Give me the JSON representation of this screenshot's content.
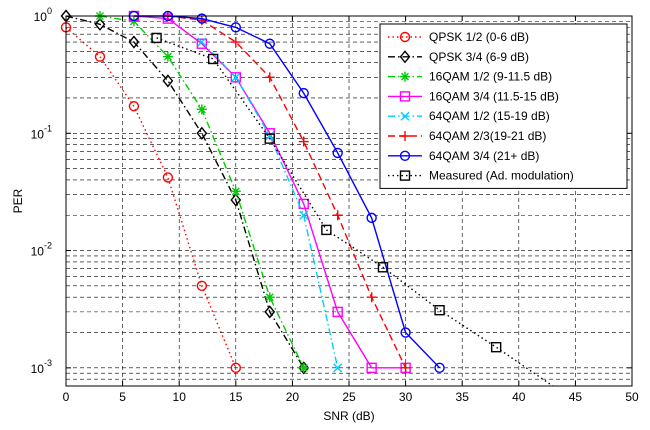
{
  "chart_data": {
    "type": "line",
    "xlabel": "SNR (dB)",
    "ylabel": "PER",
    "xlim": [
      0,
      50
    ],
    "ylim": [
      0.0007,
      1
    ],
    "yscale": "log",
    "grid": true,
    "legend_position": "top-right",
    "x_ticks": [
      "0",
      "5",
      "10",
      "15",
      "20",
      "25",
      "30",
      "35",
      "40",
      "45",
      "50"
    ],
    "y_ticks": [
      {
        "base": "10",
        "exp": "0"
      },
      {
        "base": "10",
        "exp": "-1"
      },
      {
        "base": "10",
        "exp": "-2"
      },
      {
        "base": "10",
        "exp": "-3"
      }
    ],
    "series": [
      {
        "name": "QPSK 1/2 (0-6 dB)",
        "color": "#ff0000",
        "dash": "dotted",
        "marker": "circle",
        "x": [
          0,
          3,
          6,
          9,
          12,
          15
        ],
        "y": [
          0.8,
          0.45,
          0.17,
          0.042,
          0.005,
          0.001
        ]
      },
      {
        "name": "QPSK 3/4 (6-9 dB)",
        "color": "#000000",
        "dash": "dashdot",
        "marker": "diamond",
        "x": [
          0,
          3,
          6,
          9,
          12,
          15,
          18,
          21
        ],
        "y": [
          1.0,
          0.85,
          0.6,
          0.28,
          0.1,
          0.027,
          0.003,
          0.001
        ]
      },
      {
        "name": "16QAM 1/2 (9-11.5 dB)",
        "color": "#00cc00",
        "dash": "dashdot",
        "marker": "star",
        "x": [
          3,
          6,
          9,
          12,
          15,
          18,
          21
        ],
        "y": [
          1.0,
          0.9,
          0.45,
          0.16,
          0.032,
          0.004,
          0.001
        ]
      },
      {
        "name": "16QAM 3/4 (11.5-15 dB)",
        "color": "#ff00ff",
        "dash": "solid",
        "marker": "square",
        "x": [
          6,
          9,
          12,
          15,
          18,
          21,
          24,
          27,
          30
        ],
        "y": [
          1.0,
          0.95,
          0.58,
          0.3,
          0.1,
          0.025,
          0.003,
          0.001,
          0.001
        ]
      },
      {
        "name": "64QAM 1/2 (15-19 dB)",
        "color": "#00ccff",
        "dash": "dashdot",
        "marker": "x",
        "x": [
          12,
          15,
          18,
          21,
          24
        ],
        "y": [
          0.6,
          0.3,
          0.095,
          0.02,
          0.001
        ]
      },
      {
        "name": "64QAM 2/3(19-21 dB)",
        "color": "#ff0000",
        "dash": "dashed",
        "marker": "plus",
        "x": [
          9,
          12,
          15,
          18,
          21,
          24,
          27,
          30
        ],
        "y": [
          1.0,
          0.92,
          0.6,
          0.3,
          0.085,
          0.02,
          0.004,
          0.001
        ]
      },
      {
        "name": "64QAM 3/4 (21+ dB)",
        "color": "#0000ff",
        "dash": "solid",
        "marker": "circle",
        "x": [
          6,
          9,
          12,
          15,
          18,
          21,
          24,
          27,
          30,
          33
        ],
        "y": [
          1.0,
          1.0,
          0.95,
          0.8,
          0.58,
          0.22,
          0.068,
          0.019,
          0.002,
          0.001
        ]
      },
      {
        "name": "Measured (Ad. modulation)",
        "color": "#000000",
        "dash": "dotted",
        "marker": "square",
        "x": [
          8,
          13,
          18,
          23,
          28,
          33,
          38,
          43
        ],
        "y": [
          0.65,
          0.43,
          0.09,
          0.015,
          0.0072,
          0.0031,
          0.0015,
          0.0007
        ]
      }
    ]
  }
}
